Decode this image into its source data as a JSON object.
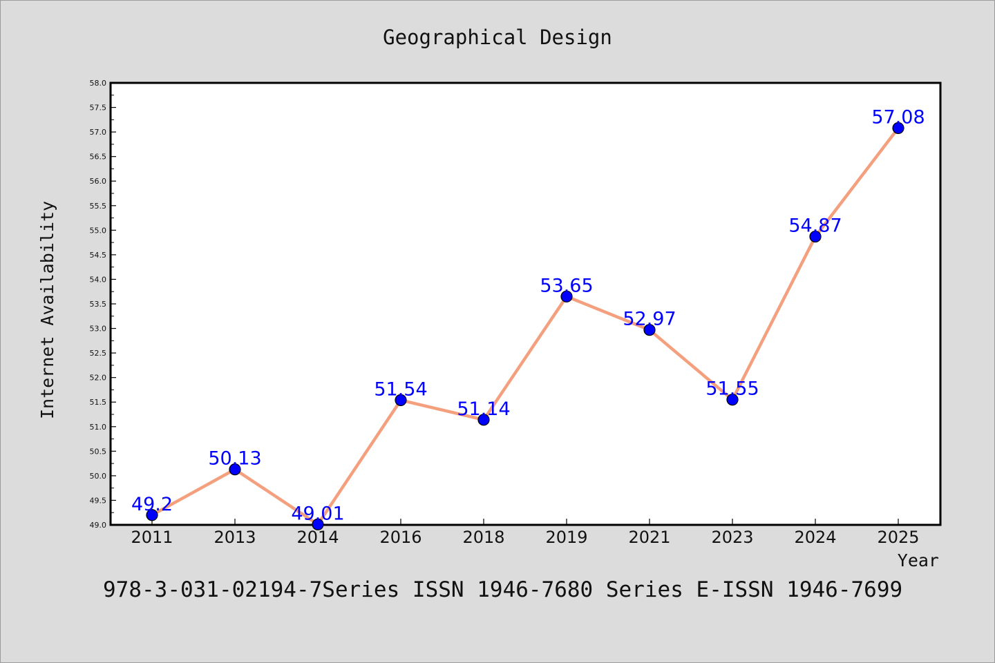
{
  "chart_data": {
    "type": "line",
    "title": "Geographical Design",
    "xlabel": "Year",
    "ylabel": "Internet Availability",
    "categories": [
      "2011",
      "2013",
      "2014",
      "2016",
      "2018",
      "2019",
      "2021",
      "2023",
      "2024",
      "2025"
    ],
    "series": [
      {
        "values": [
          49.2,
          50.13,
          49.01,
          51.54,
          51.14,
          53.65,
          52.97,
          51.55,
          54.87,
          57.08
        ],
        "labels": [
          "49.2",
          "50.13",
          "49.01",
          "51.54",
          "51.14",
          "53.65",
          "52.97",
          "51.55",
          "54.87",
          "57.08"
        ],
        "line_color": "#f4a07e",
        "marker_color": "#0000ff",
        "label_color": "#0000ff"
      }
    ],
    "ylim": [
      49.0,
      58.0
    ],
    "yticks": [
      "49.0",
      "49.5",
      "50.0",
      "50.5",
      "51.0",
      "51.5",
      "52.0",
      "52.5",
      "53.0",
      "53.5",
      "54.0",
      "54.5",
      "55.0",
      "55.5",
      "56.0",
      "56.5",
      "57.0",
      "57.5",
      "58.0"
    ],
    "grid": false,
    "legend": "none",
    "footer": "978-3-031-02194-7Series ISSN 1946-7680 Series E-ISSN 1946-7699",
    "background_color": "#dcdcdc",
    "plot_background_color": "#ffffff"
  }
}
